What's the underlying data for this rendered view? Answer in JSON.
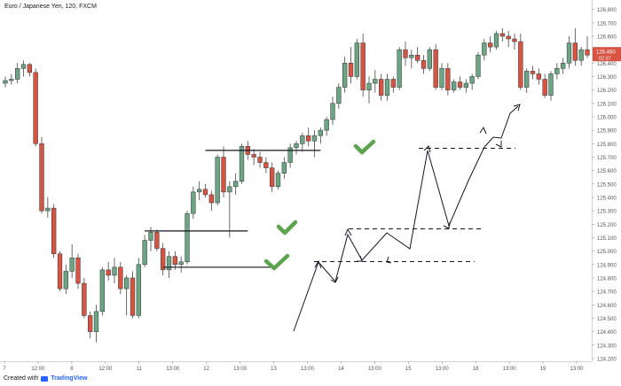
{
  "chart_data": {
    "type": "candlestick",
    "title": "Euro / Japanese Yen, 120, FXCM",
    "y_axis": {
      "ticks": [
        126.8,
        126.7,
        126.6,
        126.5,
        126.4,
        126.3,
        126.2,
        126.1,
        126.0,
        125.9,
        125.8,
        125.7,
        125.6,
        125.5,
        125.4,
        125.3,
        125.2,
        125.1,
        125.0,
        124.9,
        124.8,
        124.7,
        124.6,
        124.5,
        124.4,
        124.3,
        124.2
      ],
      "tick_labels": [
        "126.800",
        "126.700",
        "126.600",
        "126.500",
        "126.400",
        "126.300",
        "126.200",
        "126.100",
        "126.000",
        "125.900",
        "125.800",
        "125.700",
        "125.600",
        "125.500",
        "125.400",
        "125.300",
        "125.200",
        "125.100",
        "125.000",
        "124.900",
        "124.800",
        "124.700",
        "124.600",
        "124.500",
        "124.400",
        "124.300",
        "124.200"
      ],
      "range": [
        124.18,
        126.87
      ]
    },
    "x_axis": {
      "labels": [
        "7",
        "12:00",
        "8",
        "12:00",
        "11",
        "13:00",
        "12",
        "13:00",
        "13",
        "13:00",
        "14",
        "13:00",
        "15",
        "13:00",
        "18",
        "13:00",
        "19",
        "13:00"
      ]
    },
    "price_label": "126.460",
    "time_label": "02:37",
    "up_color": "#6ba583",
    "down_color": "#d75442",
    "support_lines": [
      {
        "from": 26,
        "to": 44,
        "price": 124.88
      },
      {
        "from": 23,
        "to": 40,
        "price": 125.15
      },
      {
        "from": 33,
        "to": 52,
        "price": 125.75
      }
    ],
    "candles": [
      {
        "o": 126.25,
        "h": 126.3,
        "l": 126.22,
        "c": 126.27
      },
      {
        "o": 126.27,
        "h": 126.32,
        "l": 126.24,
        "c": 126.28
      },
      {
        "o": 126.28,
        "h": 126.4,
        "l": 126.25,
        "c": 126.36
      },
      {
        "o": 126.36,
        "h": 126.42,
        "l": 126.3,
        "c": 126.39
      },
      {
        "o": 126.39,
        "h": 126.4,
        "l": 126.3,
        "c": 126.33
      },
      {
        "o": 126.33,
        "h": 126.36,
        "l": 125.78,
        "c": 125.8
      },
      {
        "o": 125.8,
        "h": 125.85,
        "l": 125.28,
        "c": 125.3
      },
      {
        "o": 125.3,
        "h": 125.4,
        "l": 125.25,
        "c": 125.32
      },
      {
        "o": 125.32,
        "h": 125.35,
        "l": 124.95,
        "c": 124.98
      },
      {
        "o": 124.98,
        "h": 125.0,
        "l": 124.7,
        "c": 124.72
      },
      {
        "o": 124.72,
        "h": 124.9,
        "l": 124.68,
        "c": 124.85
      },
      {
        "o": 124.85,
        "h": 125.05,
        "l": 124.8,
        "c": 124.95
      },
      {
        "o": 124.95,
        "h": 124.98,
        "l": 124.72,
        "c": 124.76
      },
      {
        "o": 124.76,
        "h": 124.8,
        "l": 124.5,
        "c": 124.52
      },
      {
        "o": 124.52,
        "h": 124.55,
        "l": 124.35,
        "c": 124.4
      },
      {
        "o": 124.4,
        "h": 124.6,
        "l": 124.32,
        "c": 124.55
      },
      {
        "o": 124.55,
        "h": 124.88,
        "l": 124.52,
        "c": 124.86
      },
      {
        "o": 124.86,
        "h": 124.92,
        "l": 124.78,
        "c": 124.82
      },
      {
        "o": 124.82,
        "h": 124.95,
        "l": 124.76,
        "c": 124.88
      },
      {
        "o": 124.88,
        "h": 124.92,
        "l": 124.68,
        "c": 124.72
      },
      {
        "o": 124.72,
        "h": 124.82,
        "l": 124.52,
        "c": 124.8
      },
      {
        "o": 124.8,
        "h": 124.85,
        "l": 124.5,
        "c": 124.52
      },
      {
        "o": 124.52,
        "h": 124.95,
        "l": 124.5,
        "c": 124.9
      },
      {
        "o": 124.9,
        "h": 125.12,
        "l": 124.88,
        "c": 125.08
      },
      {
        "o": 125.08,
        "h": 125.18,
        "l": 125.0,
        "c": 125.14
      },
      {
        "o": 125.14,
        "h": 125.16,
        "l": 125.0,
        "c": 125.02
      },
      {
        "o": 125.02,
        "h": 125.06,
        "l": 124.82,
        "c": 124.86
      },
      {
        "o": 124.86,
        "h": 125.0,
        "l": 124.8,
        "c": 124.96
      },
      {
        "o": 124.96,
        "h": 125.0,
        "l": 124.86,
        "c": 124.9
      },
      {
        "o": 124.9,
        "h": 124.96,
        "l": 124.84,
        "c": 124.92
      },
      {
        "o": 124.92,
        "h": 125.3,
        "l": 124.9,
        "c": 125.28
      },
      {
        "o": 125.28,
        "h": 125.48,
        "l": 125.24,
        "c": 125.44
      },
      {
        "o": 125.44,
        "h": 125.52,
        "l": 125.38,
        "c": 125.46
      },
      {
        "o": 125.46,
        "h": 125.5,
        "l": 125.4,
        "c": 125.42
      },
      {
        "o": 125.42,
        "h": 125.45,
        "l": 125.3,
        "c": 125.36
      },
      {
        "o": 125.36,
        "h": 125.72,
        "l": 125.34,
        "c": 125.7
      },
      {
        "o": 125.7,
        "h": 125.78,
        "l": 125.4,
        "c": 125.44
      },
      {
        "o": 125.44,
        "h": 125.52,
        "l": 125.1,
        "c": 125.48
      },
      {
        "o": 125.48,
        "h": 125.58,
        "l": 125.42,
        "c": 125.52
      },
      {
        "o": 125.52,
        "h": 125.8,
        "l": 125.5,
        "c": 125.78
      },
      {
        "o": 125.78,
        "h": 125.82,
        "l": 125.68,
        "c": 125.72
      },
      {
        "o": 125.72,
        "h": 125.76,
        "l": 125.64,
        "c": 125.7
      },
      {
        "o": 125.7,
        "h": 125.74,
        "l": 125.62,
        "c": 125.66
      },
      {
        "o": 125.66,
        "h": 125.7,
        "l": 125.58,
        "c": 125.62
      },
      {
        "o": 125.62,
        "h": 125.66,
        "l": 125.44,
        "c": 125.48
      },
      {
        "o": 125.48,
        "h": 125.6,
        "l": 125.46,
        "c": 125.58
      },
      {
        "o": 125.58,
        "h": 125.7,
        "l": 125.54,
        "c": 125.66
      },
      {
        "o": 125.66,
        "h": 125.8,
        "l": 125.62,
        "c": 125.77
      },
      {
        "o": 125.77,
        "h": 125.82,
        "l": 125.72,
        "c": 125.8
      },
      {
        "o": 125.8,
        "h": 125.88,
        "l": 125.74,
        "c": 125.86
      },
      {
        "o": 125.86,
        "h": 125.92,
        "l": 125.78,
        "c": 125.82
      },
      {
        "o": 125.82,
        "h": 125.9,
        "l": 125.7,
        "c": 125.86
      },
      {
        "o": 125.86,
        "h": 125.92,
        "l": 125.8,
        "c": 125.9
      },
      {
        "o": 125.9,
        "h": 126.0,
        "l": 125.86,
        "c": 125.98
      },
      {
        "o": 125.98,
        "h": 126.15,
        "l": 125.94,
        "c": 126.1
      },
      {
        "o": 126.1,
        "h": 126.25,
        "l": 126.06,
        "c": 126.22
      },
      {
        "o": 126.22,
        "h": 126.45,
        "l": 126.18,
        "c": 126.4
      },
      {
        "o": 126.4,
        "h": 126.52,
        "l": 126.25,
        "c": 126.3
      },
      {
        "o": 126.3,
        "h": 126.58,
        "l": 126.28,
        "c": 126.55
      },
      {
        "o": 126.55,
        "h": 126.62,
        "l": 126.15,
        "c": 126.2
      },
      {
        "o": 126.2,
        "h": 126.3,
        "l": 126.1,
        "c": 126.25
      },
      {
        "o": 126.25,
        "h": 126.35,
        "l": 126.18,
        "c": 126.28
      },
      {
        "o": 126.28,
        "h": 126.32,
        "l": 126.12,
        "c": 126.16
      },
      {
        "o": 126.16,
        "h": 126.32,
        "l": 126.12,
        "c": 126.28
      },
      {
        "o": 126.28,
        "h": 126.3,
        "l": 126.18,
        "c": 126.22
      },
      {
        "o": 126.22,
        "h": 126.52,
        "l": 126.2,
        "c": 126.5
      },
      {
        "o": 126.5,
        "h": 126.56,
        "l": 126.38,
        "c": 126.44
      },
      {
        "o": 126.44,
        "h": 126.5,
        "l": 126.36,
        "c": 126.46
      },
      {
        "o": 126.46,
        "h": 126.52,
        "l": 126.4,
        "c": 126.42
      },
      {
        "o": 126.42,
        "h": 126.46,
        "l": 126.32,
        "c": 126.36
      },
      {
        "o": 126.36,
        "h": 126.52,
        "l": 126.34,
        "c": 126.5
      },
      {
        "o": 126.5,
        "h": 126.54,
        "l": 126.2,
        "c": 126.22
      },
      {
        "o": 126.22,
        "h": 126.4,
        "l": 126.2,
        "c": 126.36
      },
      {
        "o": 126.36,
        "h": 126.4,
        "l": 126.16,
        "c": 126.2
      },
      {
        "o": 126.2,
        "h": 126.28,
        "l": 126.18,
        "c": 126.26
      },
      {
        "o": 126.26,
        "h": 126.3,
        "l": 126.2,
        "c": 126.22
      },
      {
        "o": 126.22,
        "h": 126.28,
        "l": 126.18,
        "c": 126.25
      },
      {
        "o": 126.25,
        "h": 126.32,
        "l": 126.2,
        "c": 126.3
      },
      {
        "o": 126.3,
        "h": 126.48,
        "l": 126.28,
        "c": 126.46
      },
      {
        "o": 126.46,
        "h": 126.58,
        "l": 126.42,
        "c": 126.55
      },
      {
        "o": 126.55,
        "h": 126.6,
        "l": 126.48,
        "c": 126.52
      },
      {
        "o": 126.52,
        "h": 126.64,
        "l": 126.5,
        "c": 126.62
      },
      {
        "o": 126.62,
        "h": 126.66,
        "l": 126.56,
        "c": 126.6
      },
      {
        "o": 126.6,
        "h": 126.64,
        "l": 126.52,
        "c": 126.58
      },
      {
        "o": 126.58,
        "h": 126.62,
        "l": 126.5,
        "c": 126.56
      },
      {
        "o": 126.56,
        "h": 126.62,
        "l": 126.2,
        "c": 126.22
      },
      {
        "o": 126.22,
        "h": 126.36,
        "l": 126.18,
        "c": 126.34
      },
      {
        "o": 126.34,
        "h": 126.38,
        "l": 126.28,
        "c": 126.32
      },
      {
        "o": 126.32,
        "h": 126.36,
        "l": 126.24,
        "c": 126.28
      },
      {
        "o": 126.28,
        "h": 126.32,
        "l": 126.14,
        "c": 126.16
      },
      {
        "o": 126.16,
        "h": 126.34,
        "l": 126.12,
        "c": 126.32
      },
      {
        "o": 126.32,
        "h": 126.4,
        "l": 126.28,
        "c": 126.36
      },
      {
        "o": 126.36,
        "h": 126.44,
        "l": 126.32,
        "c": 126.4
      },
      {
        "o": 126.4,
        "h": 126.6,
        "l": 126.36,
        "c": 126.55
      },
      {
        "o": 126.55,
        "h": 126.66,
        "l": 126.38,
        "c": 126.42
      },
      {
        "o": 126.42,
        "h": 126.52,
        "l": 126.38,
        "c": 126.5
      },
      {
        "o": 126.5,
        "h": 126.6,
        "l": 126.44,
        "c": 126.46
      }
    ]
  }
}
